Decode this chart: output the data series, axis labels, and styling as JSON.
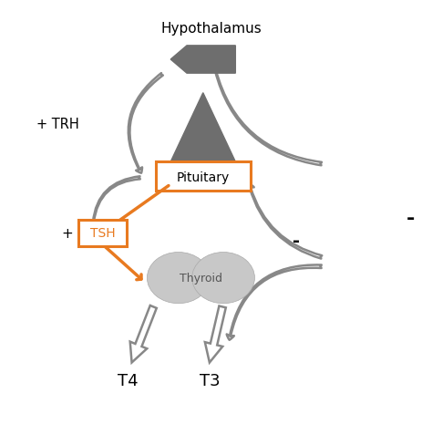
{
  "bg_color": "#ffffff",
  "gray": "#888888",
  "arrow_gray": "#888888",
  "dark_gray": "#6e6e6e",
  "light_gray": "#c8c8c8",
  "orange": "#e87a20",
  "hypothalamus_label": "Hypothalamus",
  "pituitary_label": "Pituitary",
  "thyroid_label": "Thyroid",
  "t4_label": "T4",
  "t3_label": "T3",
  "trh_label": "+ TRH",
  "tsh_plus": "+",
  "tsh_label": "TSH",
  "minus1_label": "-",
  "minus2_label": "-"
}
